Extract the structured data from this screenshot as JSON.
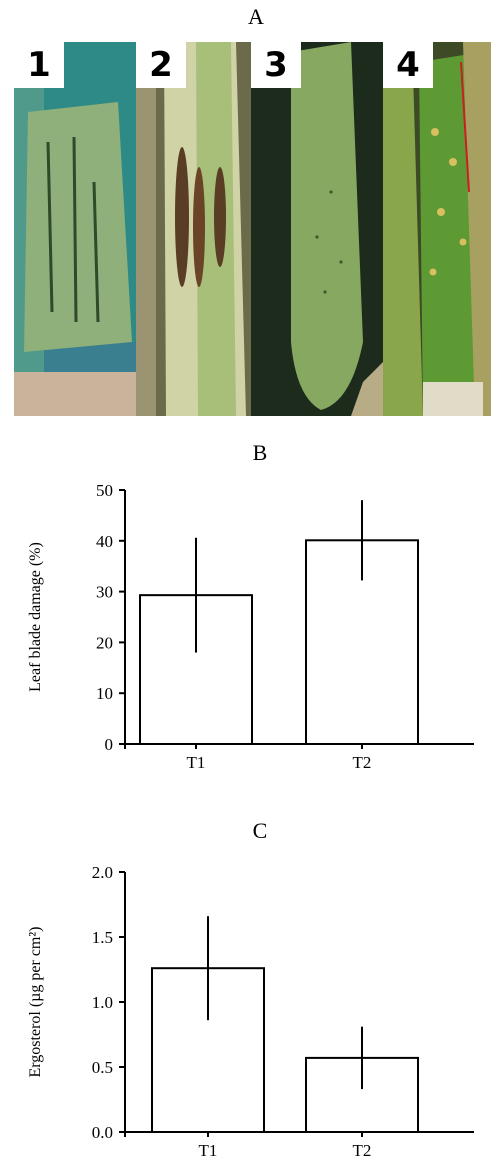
{
  "figure": {
    "panel_a_label": "A",
    "panel_b_label": "B",
    "panel_c_label": "C",
    "photos": [
      {
        "number": "1"
      },
      {
        "number": "2"
      },
      {
        "number": "3"
      },
      {
        "number": "4"
      }
    ]
  },
  "chart_data": [
    {
      "type": "bar",
      "title": "B",
      "categories": [
        "T1",
        "T2"
      ],
      "values": [
        29.3,
        40.1
      ],
      "errors": [
        11.3,
        7.9
      ],
      "xlabel": "",
      "ylabel": "Leaf blade damage (%)",
      "ylim": [
        0,
        50
      ],
      "yticks": [
        "0",
        "10",
        "20",
        "30",
        "40",
        "50"
      ],
      "grid": false,
      "bar_fill": "#ffffff",
      "bar_stroke": "#000000"
    },
    {
      "type": "bar",
      "title": "C",
      "categories": [
        "T1",
        "T2"
      ],
      "values": [
        1.26,
        0.57
      ],
      "errors": [
        0.4,
        0.24
      ],
      "xlabel": "",
      "ylabel": "Ergosterol (µg per cm²)",
      "ylim": [
        0,
        2
      ],
      "yticks": [
        "0.0",
        "0.5",
        "1.0",
        "1.5",
        "2.0"
      ],
      "grid": false,
      "bar_fill": "#ffffff",
      "bar_stroke": "#000000"
    }
  ]
}
